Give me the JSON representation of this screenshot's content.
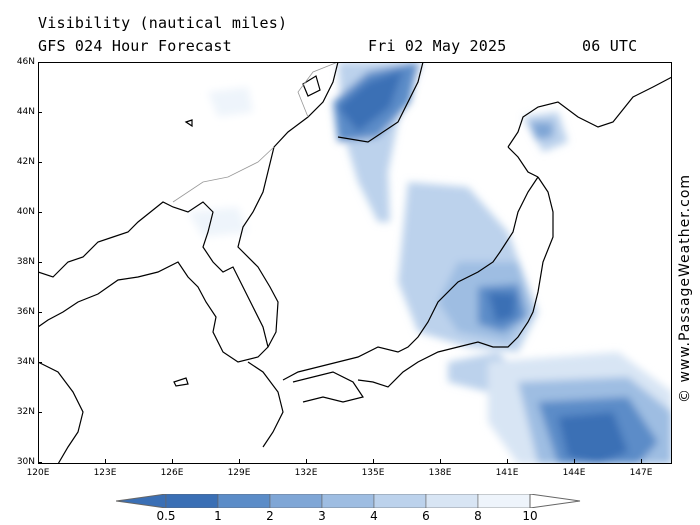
{
  "header": {
    "title": "Visibility (nautical miles)",
    "model": "GFS 024 Hour Forecast",
    "date": "Fri 02 May 2025",
    "time": "06 UTC"
  },
  "axes": {
    "lat_labels": [
      "46N",
      "44N",
      "42N",
      "40N",
      "38N",
      "36N",
      "34N",
      "32N",
      "30N"
    ],
    "lon_labels": [
      "120E",
      "123E",
      "126E",
      "129E",
      "132E",
      "135E",
      "138E",
      "141E",
      "144E",
      "147E"
    ]
  },
  "colorbar": {
    "labels": [
      "0.5",
      "1",
      "2",
      "3",
      "4",
      "6",
      "8",
      "10"
    ],
    "colors": [
      "#3a6fb5",
      "#5b8cc8",
      "#7fa6d6",
      "#9ebde2",
      "#bcd2ec",
      "#d8e5f4",
      "#eef4fb"
    ]
  },
  "credit": "© www.PassageWeather.com",
  "colors": {
    "land_outline": "#000000",
    "border": "#999999",
    "frame": "#000000"
  }
}
